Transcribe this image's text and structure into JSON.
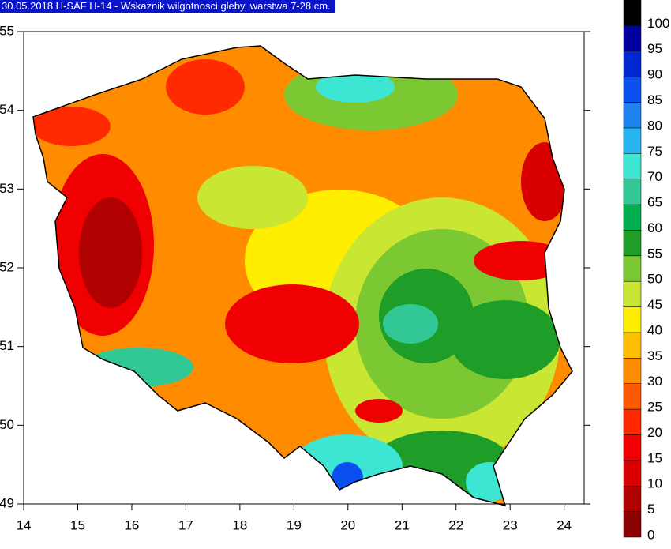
{
  "title": "30.05.2018 H-SAF H-14 - Wskaznik wilgotnosci gleby, warstwa 7-28 cm.",
  "map": {
    "xlim": [
      14,
      24.37
    ],
    "ylim": [
      49,
      55
    ],
    "xticks": [
      14,
      15,
      16,
      17,
      18,
      19,
      20,
      21,
      22,
      23,
      24
    ],
    "yticks": [
      49,
      50,
      51,
      52,
      53,
      54,
      55
    ]
  },
  "colorbar": {
    "levels": [
      0,
      5,
      10,
      15,
      20,
      25,
      30,
      35,
      40,
      45,
      50,
      55,
      60,
      65,
      70,
      75,
      80,
      85,
      90,
      95,
      100
    ],
    "colors": [
      "#8b0000",
      "#b00000",
      "#d80000",
      "#f00000",
      "#ff2a00",
      "#ff5a00",
      "#ff8c00",
      "#ffbf00",
      "#ffee00",
      "#c8e632",
      "#7cc832",
      "#1e9e28",
      "#00b050",
      "#32c896",
      "#3ce6d2",
      "#28b4f0",
      "#1e82f0",
      "#0a50f0",
      "#0028d2",
      "#0000a0",
      "#000000"
    ]
  }
}
